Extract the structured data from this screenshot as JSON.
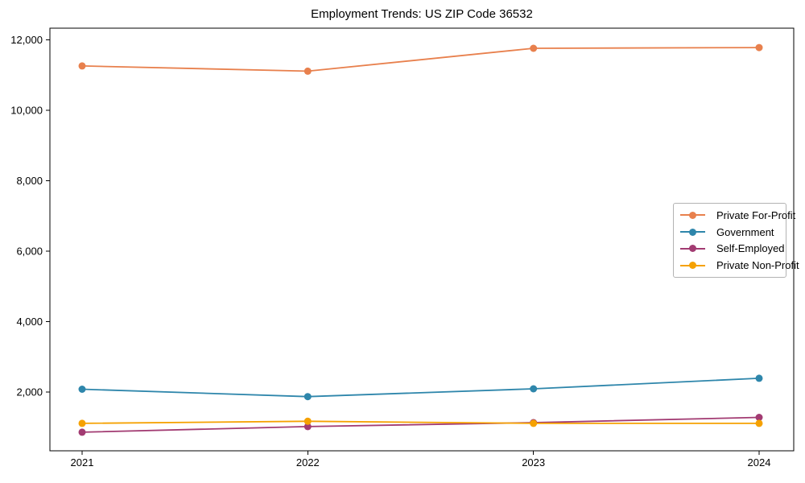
{
  "chart_data": {
    "type": "line",
    "title": "Employment Trends: US ZIP Code 36532",
    "categories": [
      "2021",
      "2022",
      "2023",
      "2024"
    ],
    "series": [
      {
        "name": "Private For-Profit",
        "color": "#E8804D",
        "values": [
          11260,
          11110,
          11760,
          11780
        ]
      },
      {
        "name": "Government",
        "color": "#2E86AB",
        "values": [
          2080,
          1870,
          2090,
          2390
        ]
      },
      {
        "name": "Self-Employed",
        "color": "#A23B72",
        "values": [
          860,
          1020,
          1130,
          1280
        ]
      },
      {
        "name": "Private Non-Profit",
        "color": "#F5A101",
        "values": [
          1110,
          1170,
          1110,
          1110
        ]
      }
    ],
    "xlabel": "",
    "ylabel": "",
    "ylim": [
      331,
      12331
    ],
    "yticks": {
      "values": [
        2000,
        4000,
        6000,
        8000,
        10000,
        12000
      ],
      "labels": [
        "2,000",
        "4,000",
        "6,000",
        "8,000",
        "10,000",
        "12,000"
      ]
    },
    "grid": false,
    "legend_position": "right-middle",
    "marker": "circle",
    "axis_color": "#000000",
    "background_color": "#ffffff"
  }
}
